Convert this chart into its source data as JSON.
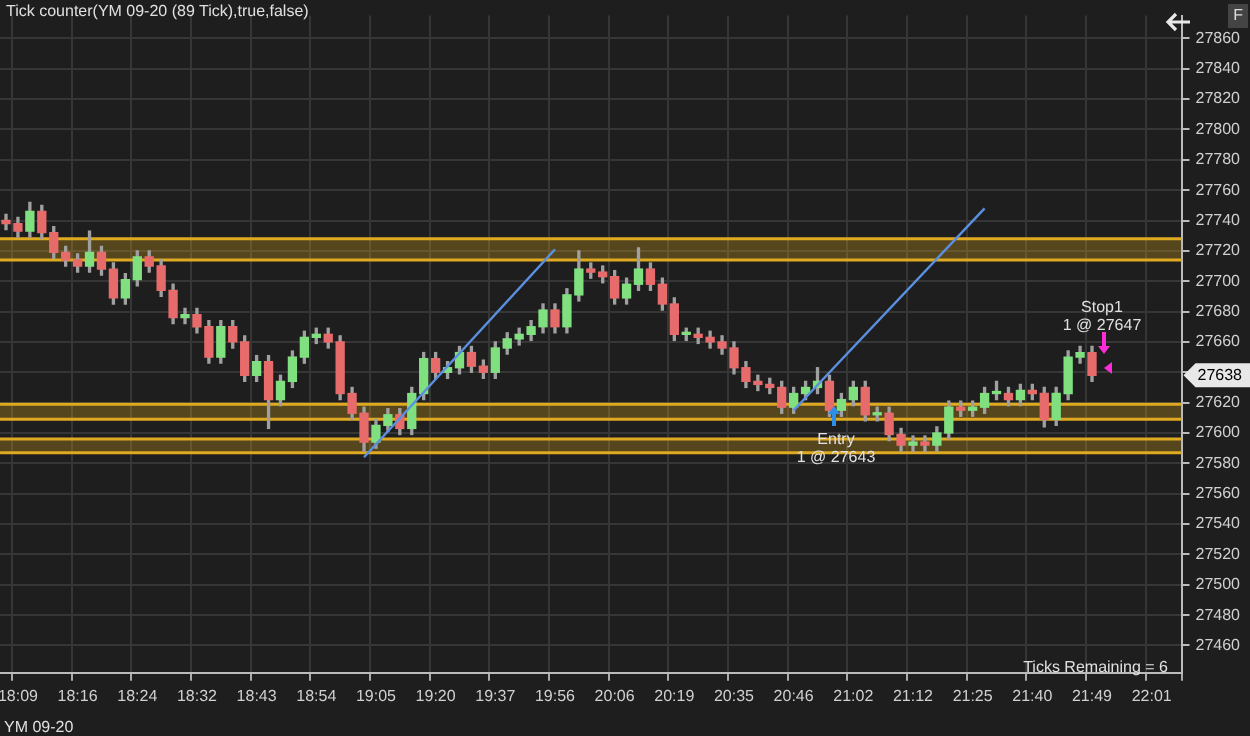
{
  "chart_data": {
    "type": "candlestick",
    "title": "Tick counter(YM 09-20 (89 Tick),true,false)",
    "categories": [
      null,
      "18:09",
      null,
      null,
      null,
      null,
      "18:16",
      null,
      null,
      null,
      null,
      "18:24",
      null,
      null,
      null,
      null,
      "18:32",
      null,
      null,
      null,
      null,
      "18:43",
      null,
      null,
      null,
      null,
      "18:54",
      null,
      null,
      null,
      null,
      "19:05",
      null,
      null,
      null,
      null,
      "19:20",
      null,
      null,
      null,
      null,
      "19:37",
      null,
      null,
      null,
      null,
      "19:56",
      null,
      null,
      null,
      null,
      "20:06",
      null,
      null,
      null,
      null,
      "20:19",
      null,
      null,
      null,
      null,
      "20:35",
      null,
      null,
      null,
      null,
      "20:46",
      null,
      null,
      null,
      null,
      "21:02",
      null,
      null,
      null,
      null,
      "21:12",
      null,
      null,
      null,
      null,
      "21:25",
      null,
      null,
      null,
      null,
      "21:40",
      null,
      null,
      null,
      null,
      "21:49",
      null,
      null,
      null,
      null,
      "22:01",
      null,
      null
    ],
    "ohlc": [
      [
        27740,
        27744,
        27734,
        27738
      ],
      [
        27738,
        27742,
        27729,
        27733
      ],
      [
        27733,
        27752,
        27729,
        27746
      ],
      [
        27746,
        27750,
        27728,
        27732
      ],
      [
        27732,
        27736,
        27715,
        27719
      ],
      [
        27719,
        27723,
        27710,
        27714
      ],
      [
        27714,
        27718,
        27706,
        27710
      ],
      [
        27710,
        27733,
        27706,
        27719
      ],
      [
        27719,
        27723,
        27704,
        27708
      ],
      [
        27708,
        27712,
        27685,
        27689
      ],
      [
        27689,
        27705,
        27685,
        27701
      ],
      [
        27701,
        27720,
        27697,
        27716
      ],
      [
        27716,
        27720,
        27706,
        27710
      ],
      [
        27710,
        27714,
        27690,
        27694
      ],
      [
        27694,
        27698,
        27672,
        27676
      ],
      [
        27676,
        27682,
        27672,
        27678
      ],
      [
        27678,
        27682,
        27666,
        27670
      ],
      [
        27670,
        27674,
        27646,
        27650
      ],
      [
        27650,
        27674,
        27646,
        27670
      ],
      [
        27670,
        27674,
        27656,
        27660
      ],
      [
        27660,
        27664,
        27634,
        27638
      ],
      [
        27638,
        27651,
        27634,
        27647
      ],
      [
        27647,
        27651,
        27603,
        27622
      ],
      [
        27622,
        27638,
        27618,
        27634
      ],
      [
        27634,
        27654,
        27630,
        27650
      ],
      [
        27650,
        27667,
        27646,
        27663
      ],
      [
        27663,
        27669,
        27659,
        27665
      ],
      [
        27665,
        27669,
        27656,
        27660
      ],
      [
        27660,
        27664,
        27622,
        27626
      ],
      [
        27626,
        27630,
        27609,
        27613
      ],
      [
        27613,
        27617,
        27588,
        27594
      ],
      [
        27594,
        27609,
        27590,
        27605
      ],
      [
        27605,
        27616,
        27601,
        27612
      ],
      [
        27612,
        27616,
        27599,
        27603
      ],
      [
        27603,
        27630,
        27599,
        27626
      ],
      [
        27626,
        27653,
        27622,
        27649
      ],
      [
        27649,
        27653,
        27636,
        27640
      ],
      [
        27640,
        27647,
        27636,
        27643
      ],
      [
        27643,
        27657,
        27639,
        27653
      ],
      [
        27653,
        27657,
        27640,
        27644
      ],
      [
        27644,
        27648,
        27636,
        27640
      ],
      [
        27640,
        27660,
        27636,
        27656
      ],
      [
        27656,
        27666,
        27652,
        27662
      ],
      [
        27662,
        27669,
        27658,
        27665
      ],
      [
        27665,
        27674,
        27661,
        27670
      ],
      [
        27670,
        27685,
        27666,
        27681
      ],
      [
        27681,
        27685,
        27666,
        27670
      ],
      [
        27670,
        27695,
        27666,
        27691
      ],
      [
        27691,
        27720,
        27687,
        27708
      ],
      [
        27708,
        27712,
        27702,
        27706
      ],
      [
        27706,
        27710,
        27699,
        27703
      ],
      [
        27703,
        27707,
        27685,
        27689
      ],
      [
        27689,
        27702,
        27685,
        27698
      ],
      [
        27698,
        27722,
        27694,
        27708
      ],
      [
        27708,
        27712,
        27694,
        27698
      ],
      [
        27698,
        27702,
        27681,
        27685
      ],
      [
        27685,
        27689,
        27661,
        27665
      ],
      [
        27665,
        27669,
        27661,
        27665
      ],
      [
        27665,
        27669,
        27659,
        27663
      ],
      [
        27663,
        27667,
        27656,
        27660
      ],
      [
        27660,
        27664,
        27652,
        27656
      ],
      [
        27656,
        27660,
        27639,
        27643
      ],
      [
        27643,
        27647,
        27630,
        27634
      ],
      [
        27634,
        27638,
        27628,
        27632
      ],
      [
        27632,
        27636,
        27626,
        27630
      ],
      [
        27630,
        27634,
        27613,
        27617
      ],
      [
        27617,
        27630,
        27613,
        27626
      ],
      [
        27626,
        27634,
        27622,
        27630
      ],
      [
        27630,
        27643,
        27626,
        27634
      ],
      [
        27634,
        27638,
        27611,
        27615
      ],
      [
        27615,
        27626,
        27611,
        27622
      ],
      [
        27622,
        27634,
        27618,
        27630
      ],
      [
        27630,
        27634,
        27608,
        27612
      ],
      [
        27612,
        27617,
        27608,
        27613
      ],
      [
        27613,
        27617,
        27595,
        27599
      ],
      [
        27599,
        27603,
        27588,
        27592
      ],
      [
        27592,
        27598,
        27588,
        27594
      ],
      [
        27594,
        27598,
        27588,
        27592
      ],
      [
        27592,
        27604,
        27588,
        27600
      ],
      [
        27600,
        27621,
        27596,
        27617
      ],
      [
        27617,
        27621,
        27611,
        27615
      ],
      [
        27615,
        27621,
        27611,
        27617
      ],
      [
        27617,
        27630,
        27613,
        27626
      ],
      [
        27626,
        27634,
        27622,
        27626
      ],
      [
        27626,
        27630,
        27618,
        27622
      ],
      [
        27622,
        27632,
        27618,
        27628
      ],
      [
        27628,
        27632,
        27622,
        27626
      ],
      [
        27626,
        27630,
        27604,
        27609
      ],
      [
        27609,
        27630,
        27605,
        27626
      ],
      [
        27626,
        27654,
        27622,
        27650
      ],
      [
        27650,
        27657,
        27646,
        27653
      ],
      [
        27653,
        27657,
        27634,
        27638
      ],
      null,
      null,
      null,
      null,
      null,
      null,
      null
    ],
    "series": [
      {
        "type": "line",
        "color": "#5b8fe0",
        "values": [
          null,
          null,
          null,
          null,
          null,
          null,
          null,
          null,
          null,
          null,
          null,
          null,
          null,
          null,
          null,
          null,
          null,
          null,
          null,
          null,
          null,
          null,
          null,
          null,
          null,
          null,
          null,
          null,
          null,
          null,
          27584,
          null,
          null,
          null,
          null,
          null,
          null,
          null,
          null,
          null,
          null,
          null,
          null,
          null,
          null,
          null,
          27721,
          null,
          null,
          null,
          null,
          null,
          null,
          null,
          null,
          null,
          null,
          null,
          null,
          null,
          null,
          null,
          null,
          null,
          null,
          null,
          null,
          null,
          null,
          null,
          null,
          null,
          null,
          null,
          null,
          null,
          null,
          null,
          null,
          null,
          null,
          null,
          null,
          null,
          null,
          null,
          null,
          null,
          null,
          null,
          null,
          null,
          null,
          null,
          null,
          null,
          null,
          null,
          null
        ]
      },
      {
        "type": "line",
        "color": "#5b8fe0",
        "values": [
          null,
          null,
          null,
          null,
          null,
          null,
          null,
          null,
          null,
          null,
          null,
          null,
          null,
          null,
          null,
          null,
          null,
          null,
          null,
          null,
          null,
          null,
          null,
          null,
          null,
          null,
          null,
          null,
          null,
          null,
          null,
          null,
          null,
          null,
          null,
          null,
          null,
          null,
          null,
          null,
          null,
          null,
          null,
          null,
          null,
          null,
          null,
          null,
          null,
          null,
          null,
          null,
          null,
          null,
          null,
          null,
          null,
          null,
          null,
          null,
          null,
          null,
          null,
          null,
          null,
          null,
          27615,
          null,
          null,
          null,
          null,
          null,
          null,
          null,
          null,
          null,
          null,
          null,
          null,
          null,
          null,
          null,
          27748,
          null,
          null,
          null,
          null,
          null,
          null,
          null,
          null,
          null,
          null,
          null,
          null,
          null,
          null,
          null,
          null
        ]
      }
    ],
    "bands": [
      {
        "axis": "y",
        "from": 27714,
        "to": 27728,
        "color": "#d9a520"
      },
      {
        "axis": "y",
        "from": 27609,
        "to": 27619,
        "color": "#d9a520"
      },
      {
        "axis": "y",
        "from": 27587,
        "to": 27596,
        "color": "#d9a520"
      }
    ],
    "ref_lines": [
      {
        "axis": "y",
        "value": 27728,
        "color": "#e0aa20"
      },
      {
        "axis": "y",
        "value": 27714,
        "color": "#e0aa20"
      },
      {
        "axis": "y",
        "value": 27619,
        "color": "#e0aa20"
      },
      {
        "axis": "y",
        "value": 27609,
        "color": "#e0aa20"
      },
      {
        "axis": "y",
        "value": 27596,
        "color": "#e0aa20"
      },
      {
        "axis": "y",
        "value": 27587,
        "color": "#e0aa20"
      }
    ],
    "annotations": [
      "Entry",
      "1 @ 27643",
      "Stop1",
      "1 @ 27647",
      "Ticks Remaining = 6",
      "YM 09-20",
      {
        "text": "27638",
        "y": 27638
      },
      "F"
    ],
    "ylim": [
      27442,
      27875
    ],
    "yticks": [
      27460,
      27480,
      27500,
      27520,
      27540,
      27560,
      27580,
      27600,
      27620,
      {
        "value": 27640,
        "label": null
      },
      27660,
      27680,
      27700,
      27720,
      27740,
      27760,
      27780,
      27800,
      27820,
      27840,
      27860
    ],
    "grid": true,
    "legend": false
  }
}
